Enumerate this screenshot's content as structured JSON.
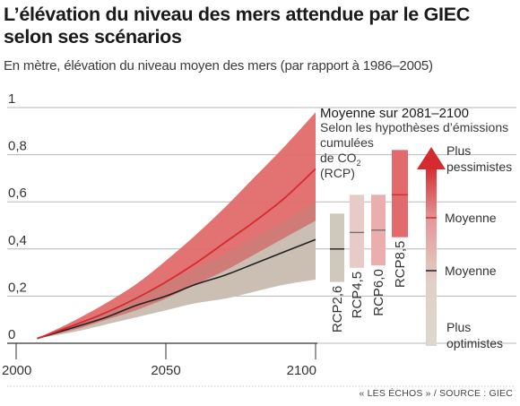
{
  "title": "L’élévation du niveau des mers attendue par le GIEC selon ses scénarios",
  "subtitle": "En mètre, élévation du niveau moyen des mers (par rapport à 1986–2005)",
  "source": "« LES ÉCHOS » / SOURCE : GIEC",
  "colors": {
    "red_band": "#e26a6c",
    "red_line": "#d42b2e",
    "grey_band": "#dbd7cb",
    "dark_line": "#222222",
    "mid_band_grey": "#cfc9bd",
    "mid_band_pink": "#e8b8b5",
    "mid_band_pink2": "#e89c9b",
    "top_band_red": "#e26a6c",
    "arrow_red": "#d42b2e"
  },
  "chart_data": {
    "type": "area",
    "title": "L’élévation du niveau des mers attendue par le GIEC selon ses scénarios",
    "xlabel": "",
    "ylabel": "En mètre",
    "xlim": [
      2000,
      2100
    ],
    "ylim": [
      0,
      1
    ],
    "x_ticks": [
      "2000",
      "2050",
      "2100"
    ],
    "y_ticks": [
      "0",
      "0,2",
      "0,4",
      "0,6",
      "0,8",
      "1"
    ],
    "grid": true,
    "series": [
      {
        "name": "RCP8,5",
        "x": [
          2007,
          2020,
          2030,
          2040,
          2050,
          2060,
          2070,
          2080,
          2090,
          2100
        ],
        "mean": [
          0.02,
          0.08,
          0.13,
          0.19,
          0.26,
          0.34,
          0.43,
          0.52,
          0.62,
          0.74
        ],
        "low": [
          0.02,
          0.06,
          0.1,
          0.14,
          0.19,
          0.25,
          0.31,
          0.38,
          0.45,
          0.52
        ],
        "high": [
          0.02,
          0.1,
          0.17,
          0.25,
          0.35,
          0.46,
          0.58,
          0.71,
          0.84,
          0.98
        ]
      },
      {
        "name": "RCP2,6",
        "x": [
          2007,
          2020,
          2030,
          2040,
          2050,
          2060,
          2070,
          2080,
          2090,
          2100
        ],
        "mean": [
          0.02,
          0.07,
          0.11,
          0.16,
          0.2,
          0.25,
          0.29,
          0.34,
          0.39,
          0.44
        ],
        "low": [
          0.02,
          0.05,
          0.08,
          0.11,
          0.14,
          0.17,
          0.19,
          0.22,
          0.25,
          0.27
        ],
        "high": [
          0.02,
          0.08,
          0.14,
          0.2,
          0.26,
          0.32,
          0.38,
          0.45,
          0.52,
          0.6
        ]
      }
    ],
    "ranges_2081_2100": {
      "title": "Moyenne sur 2081–2100",
      "caption_lines": [
        "Selon les hypothèses d’émissions",
        "cumulées",
        "de CO",
        "(RCP)"
      ],
      "caption_sub": "2",
      "bars": [
        {
          "name": "RCP2,6",
          "low": 0.26,
          "high": 0.55,
          "mean": 0.4
        },
        {
          "name": "RCP4,5",
          "low": 0.32,
          "high": 0.63,
          "mean": 0.47
        },
        {
          "name": "RCP6,0",
          "low": 0.33,
          "high": 0.63,
          "mean": 0.48
        },
        {
          "name": "RCP8,5",
          "low": 0.45,
          "high": 0.82,
          "mean": 0.63
        }
      ]
    },
    "legend": {
      "top": "Plus pessimistes",
      "mean_red": "Moyenne",
      "mean_dark": "Moyenne",
      "bottom": "Plus optimistes"
    }
  }
}
